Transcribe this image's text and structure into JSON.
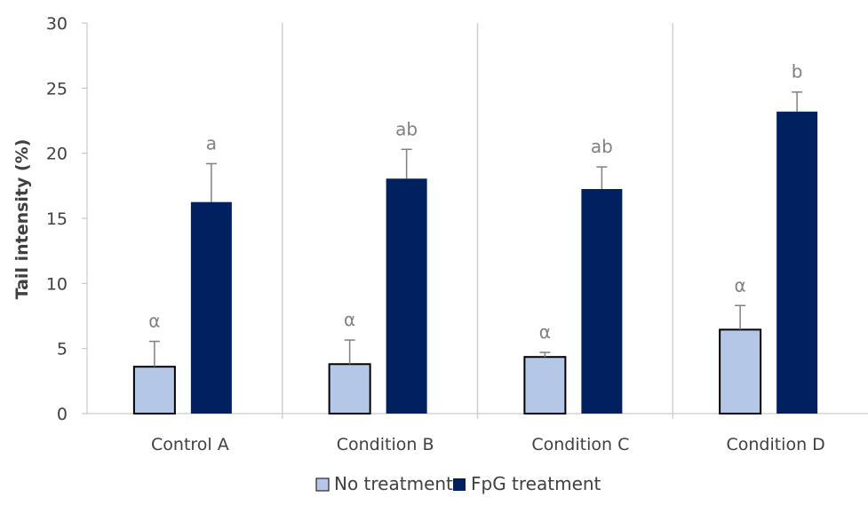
{
  "chart_data": {
    "type": "bar",
    "ylabel": "Tail intensity (%)",
    "ylim": [
      0,
      30
    ],
    "yticks": [
      0,
      5,
      10,
      15,
      20,
      25,
      30
    ],
    "categories": [
      "Control  A",
      "Condition B",
      "Condition C",
      "Condition D"
    ],
    "series": [
      {
        "name": "No treatment",
        "color": "#b4c7e7",
        "values": [
          3.6,
          3.8,
          4.35,
          6.45
        ],
        "errors": [
          1.95,
          1.85,
          0.35,
          1.85
        ],
        "labels": [
          "α",
          "α",
          "α",
          "α"
        ]
      },
      {
        "name": "FpG treatment",
        "color": "#002060",
        "values": [
          16.25,
          18.05,
          17.25,
          23.2
        ],
        "errors": [
          2.95,
          2.25,
          1.7,
          1.5
        ],
        "labels": [
          "a",
          "ab",
          "ab",
          "b"
        ]
      }
    ],
    "grid": false,
    "category_separators": true,
    "legend": "bottom-center"
  }
}
